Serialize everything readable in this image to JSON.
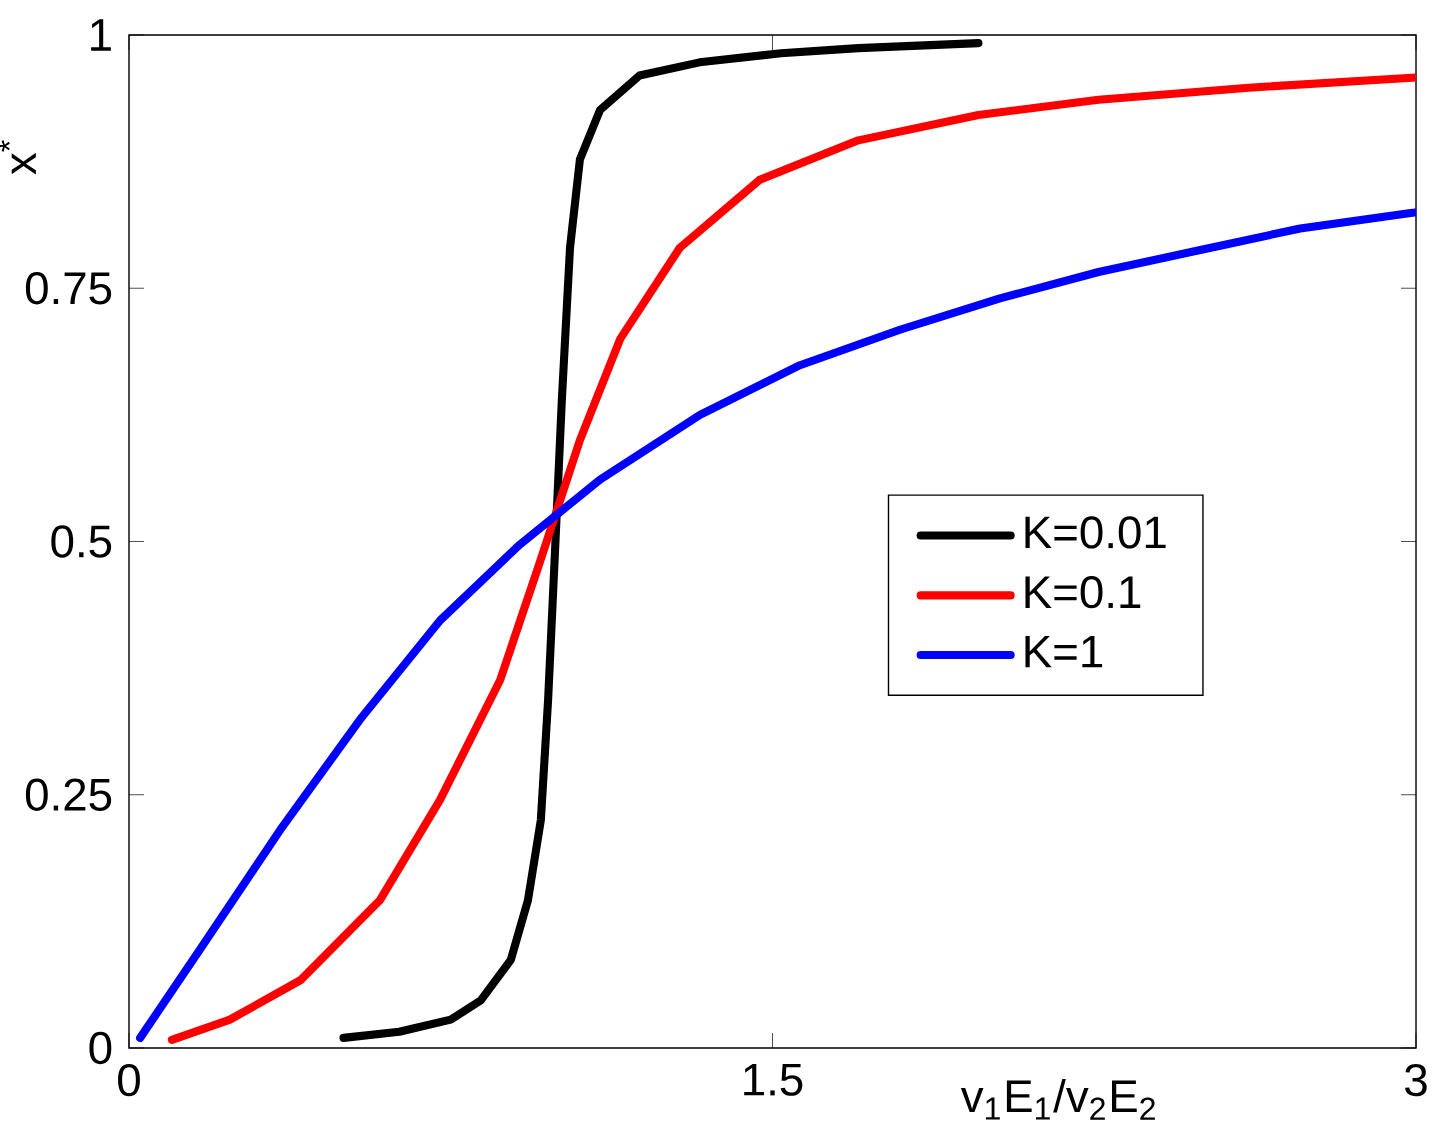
{
  "chart_data": {
    "type": "line",
    "xlabel": "v$_{1}$E$_{1}$/v$_{2}$E$_{2}$",
    "ylabel": "x$^{*}$",
    "xlim": [
      0,
      3
    ],
    "ylim": [
      0,
      1
    ],
    "xticks": [
      0,
      1.5,
      3
    ],
    "yticks": [
      0,
      0.25,
      0.5,
      0.75,
      1
    ],
    "grid": false,
    "legend": "right",
    "marker": "none",
    "line_style": "solid",
    "series": [
      {
        "name": "K=0.01",
        "color": "#000000",
        "x": [
          0.5,
          0.63,
          0.75,
          0.82,
          0.89,
          0.93,
          0.96,
          0.977,
          0.993,
          1.009,
          1.028,
          1.051,
          1.098,
          1.19,
          1.33,
          1.52,
          1.7,
          1.98
        ],
        "values": [
          0.01,
          0.016,
          0.028,
          0.047,
          0.087,
          0.146,
          0.225,
          0.344,
          0.49,
          0.64,
          0.79,
          0.877,
          0.926,
          0.96,
          0.973,
          0.982,
          0.987,
          0.992
        ]
      },
      {
        "name": "K=0.1",
        "color": "#ff0000",
        "x": [
          0.1,
          0.235,
          0.4,
          0.585,
          0.725,
          0.865,
          0.958,
          1.051,
          1.145,
          1.284,
          1.47,
          1.7,
          1.98,
          2.26,
          2.61,
          3.0
        ],
        "values": [
          0.008,
          0.028,
          0.067,
          0.146,
          0.245,
          0.363,
          0.48,
          0.6,
          0.7,
          0.79,
          0.857,
          0.896,
          0.921,
          0.936,
          0.948,
          0.958
        ]
      },
      {
        "name": "K=1",
        "color": "#0000ff",
        "x": [
          0.026,
          0.165,
          0.352,
          0.538,
          0.725,
          0.911,
          1.098,
          1.331,
          1.564,
          1.797,
          2.03,
          2.26,
          2.5,
          2.73,
          3.0
        ],
        "values": [
          0.01,
          0.097,
          0.215,
          0.324,
          0.422,
          0.497,
          0.561,
          0.625,
          0.674,
          0.709,
          0.74,
          0.766,
          0.788,
          0.809,
          0.825
        ]
      }
    ]
  }
}
